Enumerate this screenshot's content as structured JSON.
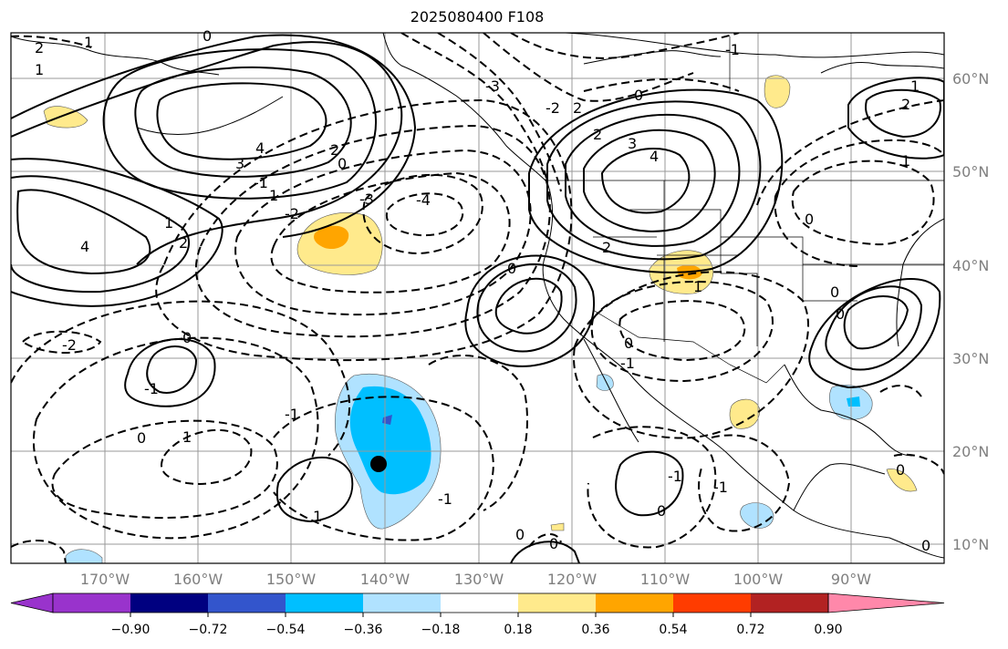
{
  "title": "2025080400 F108",
  "lat_labels": [
    "60°N",
    "50°N",
    "40°N",
    "30°N",
    "20°N",
    "10°N"
  ],
  "lon_labels": [
    "170°W",
    "160°W",
    "150°W",
    "140°W",
    "130°W",
    "120°W",
    "110°W",
    "100°W",
    "90°W"
  ],
  "contour_labels": [
    "2",
    "1",
    "1",
    "0",
    "-3",
    "-2",
    "2",
    "2",
    "0",
    "-1",
    "4",
    "3",
    "2",
    "0",
    "-1",
    "-2",
    "-3",
    "-4",
    "1",
    "2",
    "3",
    "4",
    "2",
    "4",
    "1",
    "0",
    "2",
    "1",
    "-2",
    "0",
    "-1",
    "1",
    "0",
    "-1",
    "-1",
    "1",
    "0",
    "0",
    "0",
    "-1",
    "-1",
    "1",
    "0",
    "0",
    "0",
    "0",
    "-1",
    "1",
    "0",
    "0"
  ],
  "colorbar": {
    "ticks": [
      "−0.90",
      "−0.72",
      "−0.54",
      "−0.36",
      "−0.18",
      "0.18",
      "0.36",
      "0.54",
      "0.72",
      "0.90"
    ],
    "colors": [
      "#9933cc",
      "#000080",
      "#3355cc",
      "#00bfff",
      "#b0e2ff",
      "#ffffff",
      "#ffea8c",
      "#ffa500",
      "#ff3c00",
      "#b22222",
      "#ff88aa"
    ]
  },
  "colors": {
    "neg_light": "#b0e2ff",
    "neg_mid": "#00bfff",
    "neg_dark": "#3355cc",
    "pos_light": "#ffea8c",
    "pos_mid": "#ffa500"
  }
}
